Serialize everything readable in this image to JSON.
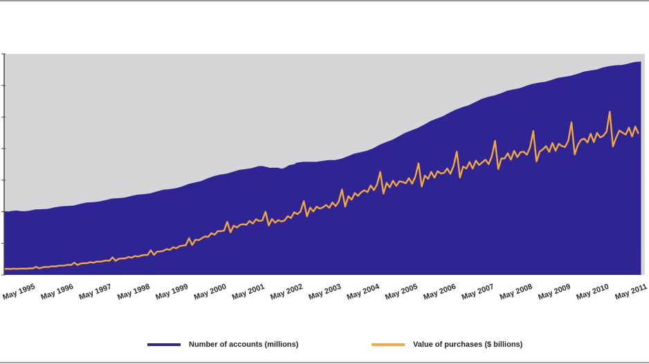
{
  "colors": {
    "plot_background": "#d6d6d8",
    "accounts_area": "#2f2494",
    "purchases_line": "#f4a93a",
    "frame_line": "#999999"
  },
  "chart_data": {
    "type": "area",
    "title": "",
    "xlabel": "",
    "ylabel": "",
    "grid": false,
    "legend_placement": "bottom",
    "x_tick_labels": [
      "May 1995",
      "May 1996",
      "May 1997",
      "May 1998",
      "May 1999",
      "May 2000",
      "May 2001",
      "May 2002",
      "May 2003",
      "May 2004",
      "May 2005",
      "May 2006",
      "May 2007",
      "May 2008",
      "May 2009",
      "May 2010",
      "May 2011"
    ],
    "x": [
      1994.75,
      1995.4,
      1996.4,
      1997.4,
      1998.4,
      1999.4,
      2000.4,
      2001.4,
      2002.0,
      2002.4,
      2003.4,
      2004.4,
      2005.4,
      2006.4,
      2007.4,
      2008.4,
      2009.4,
      2010.4,
      2011.4
    ],
    "series": [
      {
        "name": "Number of accounts (millions)",
        "style": "area",
        "values": [
          15.0,
          15.1,
          16.2,
          17.6,
          19.0,
          20.8,
          23.6,
          25.6,
          25.0,
          26.4,
          27.0,
          29.8,
          34.0,
          38.2,
          41.9,
          44.5,
          46.6,
          48.8,
          50.2
        ]
      },
      {
        "name": "Value of purchases ($ billions)",
        "style": "line",
        "values": [
          1.4,
          1.5,
          2.3,
          3.3,
          4.6,
          6.8,
          10.3,
          12.9,
          12.6,
          14.6,
          16.6,
          20.6,
          22.2,
          24.6,
          26.8,
          28.9,
          30.5,
          32.9,
          34.0
        ]
      }
    ],
    "xlim": [
      1994.75,
      2011.5
    ],
    "ylim": [
      0,
      52
    ]
  }
}
